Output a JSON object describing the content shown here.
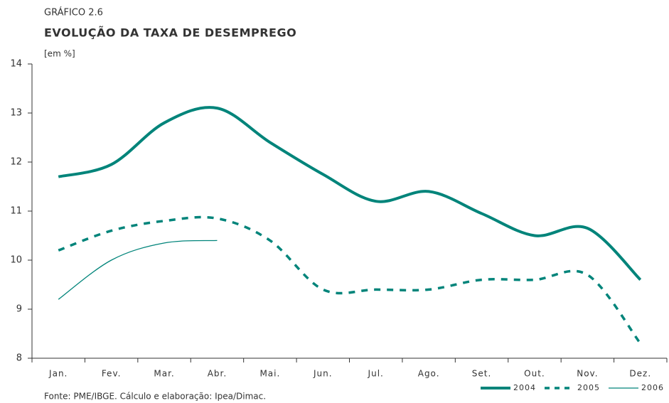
{
  "chart_data": {
    "type": "line",
    "label": "GRÁFICO 2.6",
    "title": "EVOLUÇÃO DA TAXA DE DESEMPREGO",
    "y_label": "[em %]",
    "source": "Fonte: PME/IBGE. Cálculo e elaboração: Ipea/Dimac.",
    "categories": [
      "Jan.",
      "Fev.",
      "Mar.",
      "Abr.",
      "Mai.",
      "Jun.",
      "Jul.",
      "Ago.",
      "Set.",
      "Out.",
      "Nov.",
      "Dez."
    ],
    "series": [
      {
        "name": "2004",
        "color": "#00847a",
        "line_style": "solid",
        "values": [
          11.7,
          11.95,
          12.8,
          13.1,
          12.4,
          11.75,
          11.2,
          11.4,
          10.95,
          10.5,
          10.65,
          9.6
        ]
      },
      {
        "name": "2005",
        "color": "#00847a",
        "line_style": "dashed",
        "values": [
          10.2,
          10.6,
          10.8,
          10.85,
          10.4,
          9.4,
          9.4,
          9.4,
          9.6,
          9.6,
          9.7,
          8.3
        ]
      },
      {
        "name": "2006",
        "color": "#00847a",
        "line_style": "thin",
        "values": [
          9.2,
          10.0,
          10.35,
          10.4,
          null,
          null,
          null,
          null,
          null,
          null,
          null,
          null
        ]
      }
    ],
    "ylim": [
      8,
      14
    ],
    "yticks": [
      8,
      9,
      10,
      11,
      12,
      13,
      14
    ],
    "legend": "bottom-right"
  }
}
